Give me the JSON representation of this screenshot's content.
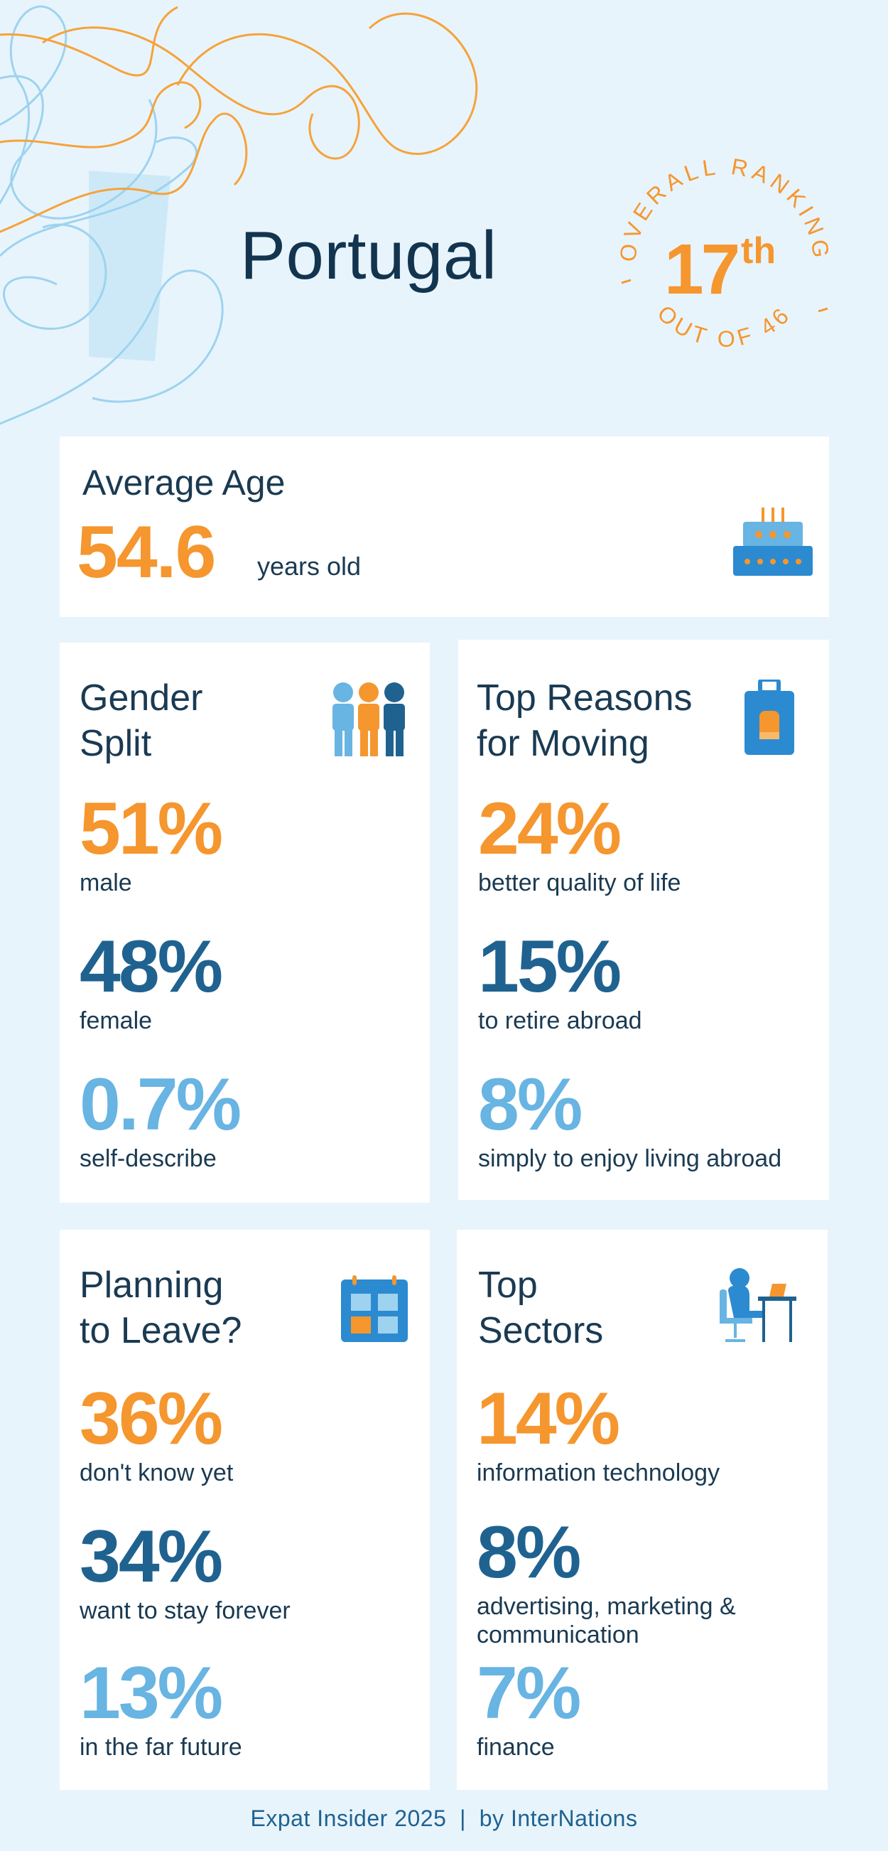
{
  "page": {
    "title": "Portugal",
    "footer": "Expat Insider 2025  |  by InterNations"
  },
  "ranking": {
    "caption_top": "OVERALL RANKING",
    "rank_number": "17",
    "rank_suffix": "th",
    "caption_bottom": "OUT OF 46"
  },
  "average_age": {
    "label": "Average Age",
    "value": "54.6",
    "unit": "years old",
    "icon": "birthday-cake-icon"
  },
  "gender_split": {
    "title_line1": "Gender",
    "title_line2": "Split",
    "icon": "people-group-icon",
    "stats": [
      {
        "value": "51%",
        "label": "male"
      },
      {
        "value": "48%",
        "label": "female"
      },
      {
        "value": "0.7%",
        "label": "self-describe"
      }
    ]
  },
  "top_reasons": {
    "title_line1": "Top Reasons",
    "title_line2": "for Moving",
    "icon": "suitcase-icon",
    "stats": [
      {
        "value": "24%",
        "label": "better quality of life"
      },
      {
        "value": "15%",
        "label": "to retire abroad"
      },
      {
        "value": "8%",
        "label": "simply to enjoy living abroad"
      }
    ]
  },
  "planning_to_leave": {
    "title_line1": "Planning",
    "title_line2": "to Leave?",
    "icon": "calendar-icon",
    "stats": [
      {
        "value": "36%",
        "label": "don't know yet"
      },
      {
        "value": "34%",
        "label": "want to stay forever"
      },
      {
        "value": "13%",
        "label": "in the far future"
      }
    ]
  },
  "top_sectors": {
    "title_line1": "Top",
    "title_line2": "Sectors",
    "icon": "person-at-desk-icon",
    "stats": [
      {
        "value": "14%",
        "label": "information technology"
      },
      {
        "value": "8%",
        "label_line1": "advertising, marketing &",
        "label_line2": "communication"
      },
      {
        "value": "7%",
        "label": "finance"
      }
    ]
  },
  "colors": {
    "background": "#e8f4fc",
    "orange": "#f5962e",
    "dark_blue": "#1f6290",
    "light_blue": "#68b4e2",
    "navy_text": "#12344f"
  }
}
